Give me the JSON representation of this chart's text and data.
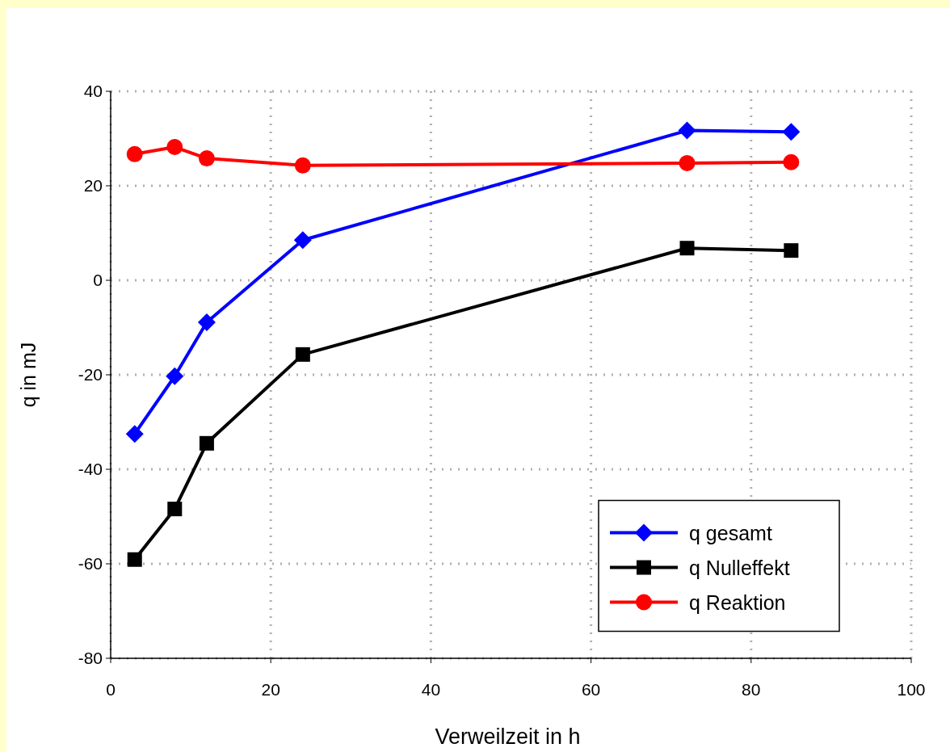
{
  "chart_data": {
    "type": "line",
    "xlabel": "Verweilzeit in h",
    "ylabel": "q in mJ",
    "x": [
      3,
      8,
      12,
      24,
      72,
      85
    ],
    "series": [
      {
        "name": "q gesamt",
        "color": "#0000ff",
        "marker": "diamond",
        "values": [
          -32.5,
          -20.3,
          -8.9,
          8.5,
          31.7,
          31.4
        ]
      },
      {
        "name": "q Nulleffekt",
        "color": "#000000",
        "marker": "square",
        "values": [
          -59.1,
          -48.4,
          -34.5,
          -15.7,
          6.8,
          6.3
        ]
      },
      {
        "name": "q Reaktion",
        "color": "#ff0000",
        "marker": "circle",
        "values": [
          26.7,
          28.2,
          25.8,
          24.3,
          24.8,
          25.0
        ]
      }
    ],
    "xlim": [
      0,
      100
    ],
    "xticks": [
      0,
      20,
      40,
      60,
      80,
      100
    ],
    "ylim": [
      -80,
      40
    ],
    "yticks": [
      -80,
      -60,
      -40,
      -20,
      0,
      20,
      40
    ],
    "grid": true,
    "legend": "bottom right",
    "line_style": "solid"
  }
}
